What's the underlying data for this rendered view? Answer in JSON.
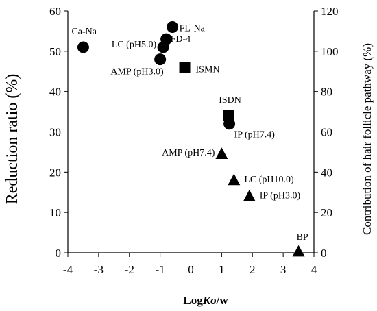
{
  "chart_data": {
    "type": "scatter",
    "title": "",
    "xlabel_parts": [
      "Log",
      "Ko",
      "/w"
    ],
    "ylabel": "Reduction ratio (%)",
    "y2label": "Contribution of hair follicle pathway (%)",
    "xlim": [
      -4,
      4
    ],
    "ylim": [
      0,
      60
    ],
    "y2lim": [
      0,
      120
    ],
    "x_ticks": [
      "-4",
      "-3",
      "-2",
      "-1",
      "0",
      "1",
      "2",
      "3",
      "4"
    ],
    "y_ticks": [
      "0",
      "10",
      "20",
      "30",
      "40",
      "50",
      "60"
    ],
    "y2_ticks": [
      "0",
      "20",
      "40",
      "60",
      "80",
      "100",
      "120"
    ],
    "grid": false,
    "series": [
      {
        "marker": "circle",
        "points": [
          {
            "label": "Ca-Na",
            "x": -3.5,
            "y": 51
          },
          {
            "label": "FL-Na",
            "x": -0.6,
            "y": 56
          },
          {
            "label": "FD-4",
            "x": -0.8,
            "y": 53
          },
          {
            "label": "LC (pH5.0)",
            "x": -0.9,
            "y": 51
          },
          {
            "label": "AMP (pH3.0)",
            "x": -1.0,
            "y": 48
          },
          {
            "label": "IP (pH7.4)",
            "x": 1.25,
            "y": 32
          }
        ]
      },
      {
        "marker": "square",
        "points": [
          {
            "label": "ISMN",
            "x": -0.2,
            "y": 46
          },
          {
            "label": "ISDN",
            "x": 1.22,
            "y": 34
          }
        ]
      },
      {
        "marker": "triangle",
        "points": [
          {
            "label": "AMP (pH7.4)",
            "x": 1.0,
            "y": 24.5
          },
          {
            "label": "LC (pH10.0)",
            "x": 1.4,
            "y": 18
          },
          {
            "label": "IP (pH3.0)",
            "x": 1.9,
            "y": 14
          },
          {
            "label": "BP",
            "x": 3.5,
            "y": 0.3
          }
        ]
      }
    ]
  }
}
